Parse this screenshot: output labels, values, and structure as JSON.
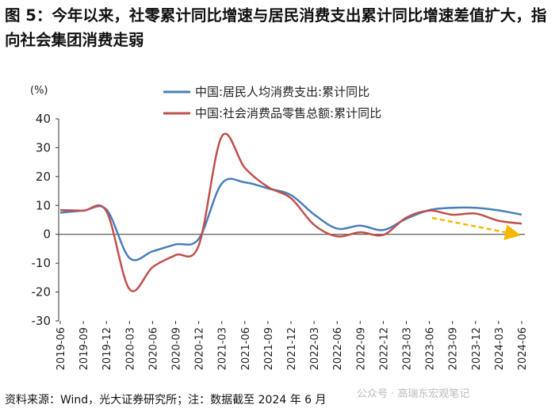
{
  "chart_data": {
    "type": "line",
    "title": "图 5：今年以来，社零累计同比增速与居民消费支出累计同比增速差值扩大，指向社会集团消费走弱",
    "y_label": "(%)",
    "source": "资料来源：Wind，光大证券研究所；注：数据截至 2024 年 6 月",
    "watermark": "公众号 · 高瑞东宏观笔记",
    "categories": [
      "2019-06",
      "2019-09",
      "2019-12",
      "2020-03",
      "2020-06",
      "2020-09",
      "2020-12",
      "2021-03",
      "2021-06",
      "2021-09",
      "2021-12",
      "2022-03",
      "2022-06",
      "2022-09",
      "2022-12",
      "2023-03",
      "2023-06",
      "2023-09",
      "2023-12",
      "2024-03",
      "2024-06"
    ],
    "series": [
      {
        "name": "中国:居民人均消费支出:累计同比",
        "color": "#4a7ebb",
        "values": [
          7.5,
          8.2,
          8.6,
          -8.2,
          -5.9,
          -3.5,
          -1.6,
          17.6,
          18.0,
          15.9,
          13.6,
          6.9,
          2.0,
          3.0,
          1.5,
          5.4,
          8.4,
          9.2,
          9.2,
          8.3,
          6.8
        ]
      },
      {
        "name": "中国:社会消费品零售总额:累计同比",
        "color": "#c0504d",
        "values": [
          8.4,
          8.2,
          8.0,
          -19.0,
          -11.4,
          -7.2,
          -3.9,
          33.9,
          23.0,
          16.4,
          12.5,
          3.3,
          -0.7,
          0.7,
          -0.2,
          5.8,
          8.2,
          6.8,
          7.2,
          4.7,
          3.7
        ]
      }
    ],
    "ylim": [
      -30,
      40
    ],
    "yticks": [
      -30,
      -20,
      -10,
      0,
      10,
      20,
      30,
      40
    ]
  }
}
